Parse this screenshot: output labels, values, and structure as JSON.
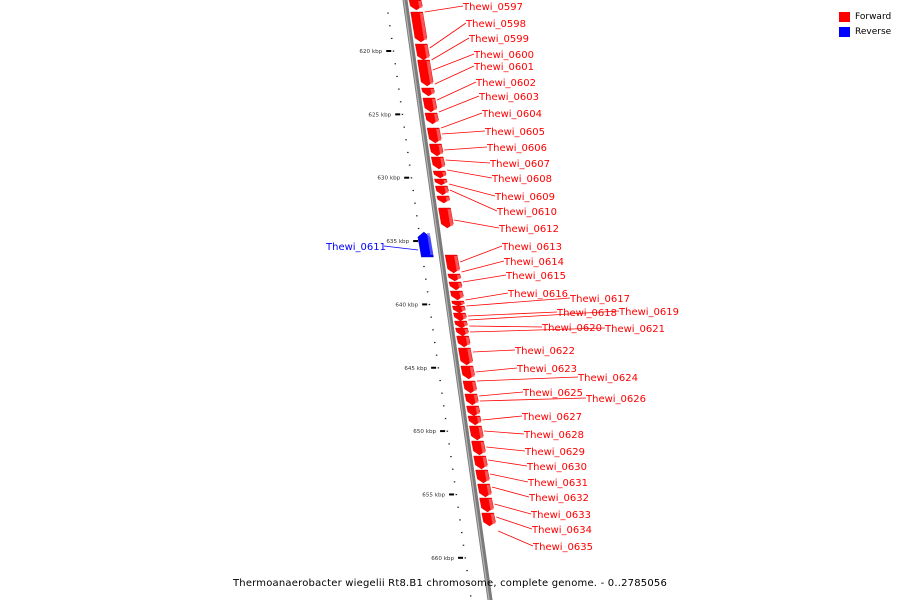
{
  "legend": {
    "forward": {
      "label": "Forward",
      "color": "#ff0000"
    },
    "reverse": {
      "label": "Reverse",
      "color": "#0000ff"
    }
  },
  "caption": "Thermoanaerobacter wiegelii Rt8.B1 chromosome, complete genome. - 0..2785056",
  "ticks": [
    {
      "kbp": 620,
      "label": "620 kbp"
    },
    {
      "kbp": 625,
      "label": "625 kbp"
    },
    {
      "kbp": 630,
      "label": "630 kbp"
    },
    {
      "kbp": 635,
      "label": "635 kbp"
    },
    {
      "kbp": 640,
      "label": "640 kbp"
    },
    {
      "kbp": 645,
      "label": "645 kbp"
    },
    {
      "kbp": 650,
      "label": "650 kbp"
    },
    {
      "kbp": 655,
      "label": "655 kbp"
    },
    {
      "kbp": 660,
      "label": "660 kbp"
    }
  ],
  "genes": [
    {
      "name": "Thewi_0597",
      "strand": "forward"
    },
    {
      "name": "Thewi_0598",
      "strand": "forward"
    },
    {
      "name": "Thewi_0599",
      "strand": "forward"
    },
    {
      "name": "Thewi_0600",
      "strand": "forward"
    },
    {
      "name": "Thewi_0601",
      "strand": "forward"
    },
    {
      "name": "Thewi_0602",
      "strand": "forward"
    },
    {
      "name": "Thewi_0603",
      "strand": "forward"
    },
    {
      "name": "Thewi_0604",
      "strand": "forward"
    },
    {
      "name": "Thewi_0605",
      "strand": "forward"
    },
    {
      "name": "Thewi_0606",
      "strand": "forward"
    },
    {
      "name": "Thewi_0607",
      "strand": "forward"
    },
    {
      "name": "Thewi_0608",
      "strand": "forward"
    },
    {
      "name": "Thewi_0609",
      "strand": "forward"
    },
    {
      "name": "Thewi_0610",
      "strand": "forward"
    },
    {
      "name": "Thewi_0611",
      "strand": "reverse"
    },
    {
      "name": "Thewi_0612",
      "strand": "forward"
    },
    {
      "name": "Thewi_0613",
      "strand": "forward"
    },
    {
      "name": "Thewi_0614",
      "strand": "forward"
    },
    {
      "name": "Thewi_0615",
      "strand": "forward"
    },
    {
      "name": "Thewi_0616",
      "strand": "forward"
    },
    {
      "name": "Thewi_0617",
      "strand": "forward"
    },
    {
      "name": "Thewi_0618",
      "strand": "forward"
    },
    {
      "name": "Thewi_0619",
      "strand": "forward"
    },
    {
      "name": "Thewi_0620",
      "strand": "forward"
    },
    {
      "name": "Thewi_0621",
      "strand": "forward"
    },
    {
      "name": "Thewi_0622",
      "strand": "forward"
    },
    {
      "name": "Thewi_0623",
      "strand": "forward"
    },
    {
      "name": "Thewi_0624",
      "strand": "forward"
    },
    {
      "name": "Thewi_0625",
      "strand": "forward"
    },
    {
      "name": "Thewi_0626",
      "strand": "forward"
    },
    {
      "name": "Thewi_0627",
      "strand": "forward"
    },
    {
      "name": "Thewi_0628",
      "strand": "forward"
    },
    {
      "name": "Thewi_0629",
      "strand": "forward"
    },
    {
      "name": "Thewi_0630",
      "strand": "forward"
    },
    {
      "name": "Thewi_0631",
      "strand": "forward"
    },
    {
      "name": "Thewi_0632",
      "strand": "forward"
    },
    {
      "name": "Thewi_0633",
      "strand": "forward"
    },
    {
      "name": "Thewi_0634",
      "strand": "forward"
    },
    {
      "name": "Thewi_0635",
      "strand": "forward"
    }
  ]
}
